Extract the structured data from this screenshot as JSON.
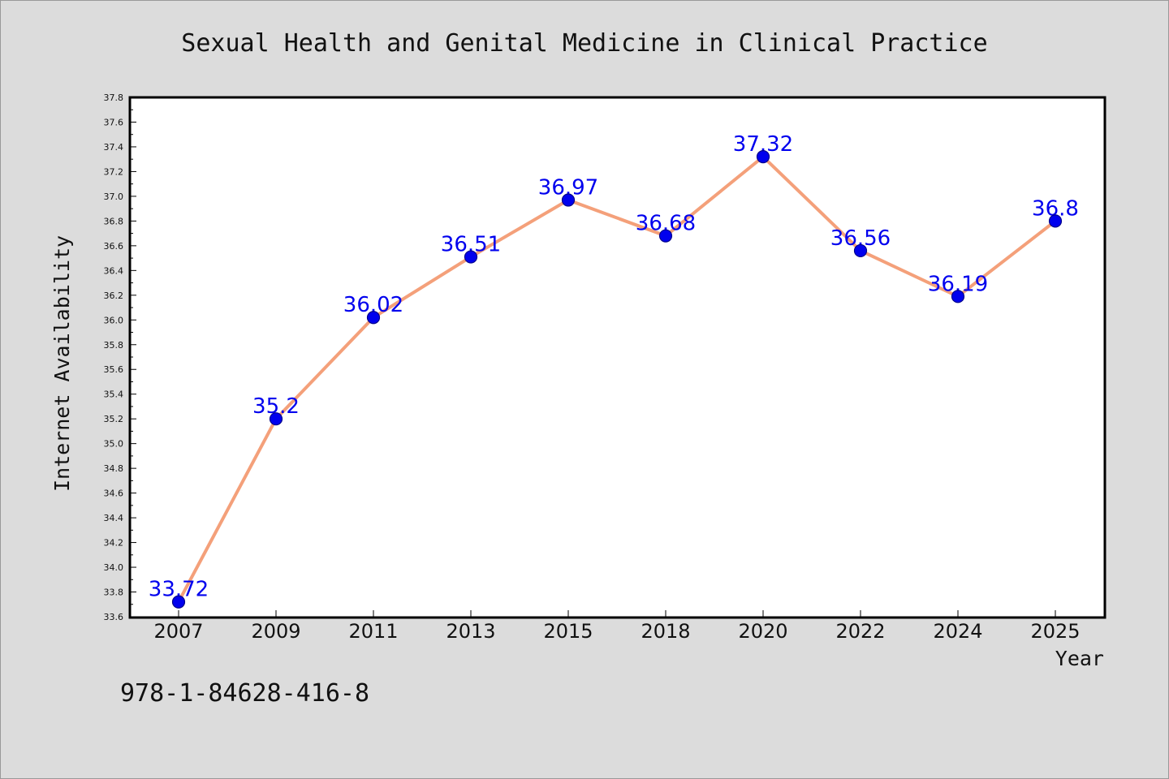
{
  "chart_data": {
    "type": "line",
    "title": "Sexual Health and Genital Medicine in Clinical Practice",
    "xlabel": "Year",
    "ylabel": "Internet Availability",
    "categories": [
      "2007",
      "2009",
      "2011",
      "2013",
      "2015",
      "2018",
      "2020",
      "2022",
      "2024",
      "2025"
    ],
    "values": [
      33.72,
      35.2,
      36.02,
      36.51,
      36.97,
      36.68,
      37.32,
      36.56,
      36.19,
      36.8
    ],
    "data_labels": [
      "33.72",
      "35.2",
      "36.02",
      "36.51",
      "36.97",
      "36.68",
      "37.32",
      "36.56",
      "36.19",
      "36.8"
    ],
    "ylim": [
      33.6,
      37.8
    ],
    "yticks": [
      "33.6",
      "33.8",
      "34.0",
      "34.2",
      "34.4",
      "34.6",
      "34.8",
      "35.0",
      "35.2",
      "35.4",
      "35.6",
      "35.8",
      "36.0",
      "36.2",
      "36.4",
      "36.6",
      "36.8",
      "37.0",
      "37.2",
      "37.4",
      "37.6",
      "37.8"
    ],
    "grid": false,
    "legend": "none",
    "colors": {
      "line": "#f4a07a",
      "marker": "#0000ee",
      "label": "#0000ee",
      "plot_background": "#ffffff",
      "page_background": "#dcdcdc"
    }
  },
  "footer": {
    "isbn": "978-1-84628-416-8"
  }
}
